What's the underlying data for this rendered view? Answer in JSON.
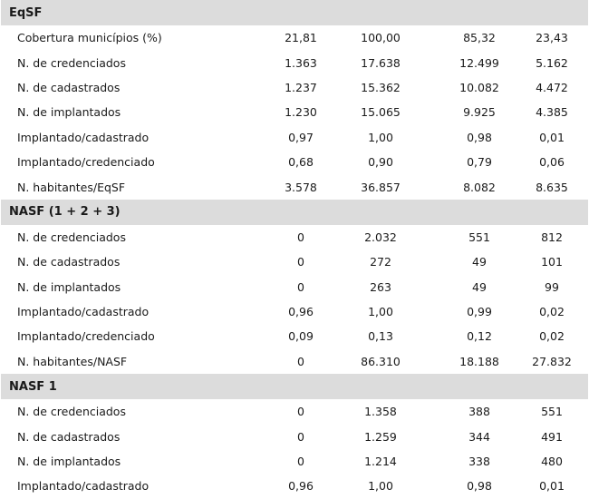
{
  "sections": [
    {
      "title": "EqSF",
      "rows": [
        {
          "label": "Cobertura municípios (%)",
          "values": [
            "21,81",
            "100,00",
            "85,32",
            "23,43"
          ]
        },
        {
          "label": "N. de credenciados",
          "values": [
            "1.363",
            "17.638",
            "12.499",
            "5.162"
          ]
        },
        {
          "label": "N. de cadastrados",
          "values": [
            "1.237",
            "15.362",
            "10.082",
            "4.472"
          ]
        },
        {
          "label": "N. de implantados",
          "values": [
            "1.230",
            "15.065",
            "9.925",
            "4.385"
          ]
        },
        {
          "label": "Implantado/cadastrado",
          "values": [
            "0,97",
            "1,00",
            "0,98",
            "0,01"
          ]
        },
        {
          "label": "Implantado/credenciado",
          "values": [
            "0,68",
            "0,90",
            "0,79",
            "0,06"
          ]
        },
        {
          "label": "N. habitantes/EqSF",
          "values": [
            "3.578",
            "36.857",
            "8.082",
            "8.635"
          ]
        }
      ]
    },
    {
      "title": "NASF (1 + 2 + 3)",
      "rows": [
        {
          "label": "N. de credenciados",
          "values": [
            "0",
            "2.032",
            "551",
            "812"
          ]
        },
        {
          "label": "N. de cadastrados",
          "values": [
            "0",
            "272",
            "49",
            "101"
          ]
        },
        {
          "label": "N. de implantados",
          "values": [
            "0",
            "263",
            "49",
            "99"
          ]
        },
        {
          "label": "Implantado/cadastrado",
          "values": [
            "0,96",
            "1,00",
            "0,99",
            "0,02"
          ]
        },
        {
          "label": "Implantado/credenciado",
          "values": [
            "0,09",
            "0,13",
            "0,12",
            "0,02"
          ]
        },
        {
          "label": "N. habitantes/NASF",
          "values": [
            "0",
            "86.310",
            "18.188",
            "27.832"
          ]
        }
      ]
    },
    {
      "title": "NASF 1",
      "rows": [
        {
          "label": "N. de credenciados",
          "values": [
            "0",
            "1.358",
            "388",
            "551"
          ]
        },
        {
          "label": "N. de cadastrados",
          "values": [
            "0",
            "1.259",
            "344",
            "491"
          ]
        },
        {
          "label": "N. de implantados",
          "values": [
            "0",
            "1.214",
            "338",
            "480"
          ]
        },
        {
          "label": "Implantado/cadastrado",
          "values": [
            "0,96",
            "1,00",
            "0,98",
            "0,01"
          ]
        }
      ]
    }
  ]
}
